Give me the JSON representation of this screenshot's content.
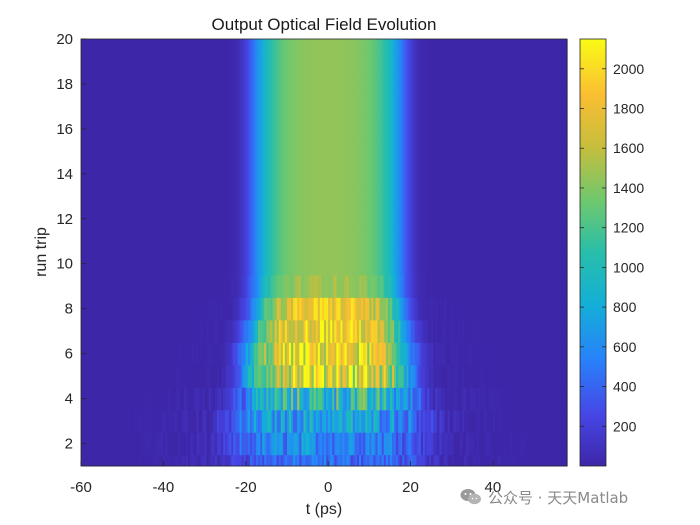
{
  "chart_data": {
    "type": "heatmap",
    "title": "Output Optical Field Evolution",
    "xlabel": "t (ps)",
    "ylabel": "run trip",
    "xlim": [
      -60,
      58
    ],
    "ylim": [
      1,
      20
    ],
    "xticks": [
      -60,
      -40,
      -20,
      0,
      20,
      40
    ],
    "yticks": [
      2,
      4,
      6,
      8,
      10,
      12,
      14,
      16,
      18,
      20
    ],
    "colorbar": {
      "colormap": "parula",
      "clim": [
        0,
        2150
      ],
      "ticks": [
        200,
        400,
        600,
        800,
        1000,
        1200,
        1400,
        1600,
        1800,
        2000
      ]
    },
    "rows": [
      {
        "run_trip": 1,
        "peak": 400,
        "width": 24,
        "noise": 0.55
      },
      {
        "run_trip": 2,
        "peak": 560,
        "width": 24,
        "noise": 0.55
      },
      {
        "run_trip": 3,
        "peak": 720,
        "width": 24,
        "noise": 0.55
      },
      {
        "run_trip": 4,
        "peak": 980,
        "width": 22,
        "noise": 0.6
      },
      {
        "run_trip": 5,
        "peak": 1850,
        "width": 20,
        "noise": 0.35
      },
      {
        "run_trip": 6,
        "peak": 1850,
        "width": 20,
        "noise": 0.3
      },
      {
        "run_trip": 7,
        "peak": 1900,
        "width": 19,
        "noise": 0.22
      },
      {
        "run_trip": 8,
        "peak": 1850,
        "width": 18,
        "noise": 0.18
      },
      {
        "run_trip": 9,
        "peak": 1500,
        "width": 18,
        "noise": 0.08
      },
      {
        "run_trip": 10,
        "peak": 1450,
        "width": 18,
        "noise": 0.0
      },
      {
        "run_trip": 11,
        "peak": 1450,
        "width": 18,
        "noise": 0.0
      },
      {
        "run_trip": 12,
        "peak": 1450,
        "width": 18,
        "noise": 0.0
      },
      {
        "run_trip": 13,
        "peak": 1450,
        "width": 18,
        "noise": 0.0
      },
      {
        "run_trip": 14,
        "peak": 1450,
        "width": 18,
        "noise": 0.0
      },
      {
        "run_trip": 15,
        "peak": 1450,
        "width": 18,
        "noise": 0.0
      },
      {
        "run_trip": 16,
        "peak": 1450,
        "width": 18,
        "noise": 0.0
      },
      {
        "run_trip": 17,
        "peak": 1450,
        "width": 18,
        "noise": 0.0
      },
      {
        "run_trip": 18,
        "peak": 1450,
        "width": 18,
        "noise": 0.0
      },
      {
        "run_trip": 19,
        "peak": 1450,
        "width": 18,
        "noise": 0.0
      },
      {
        "run_trip": 20,
        "peak": 1450,
        "width": 18,
        "noise": 0.0
      }
    ]
  },
  "watermark": {
    "icon": "wechat-icon",
    "text": "公众号 · 天天Matlab"
  }
}
